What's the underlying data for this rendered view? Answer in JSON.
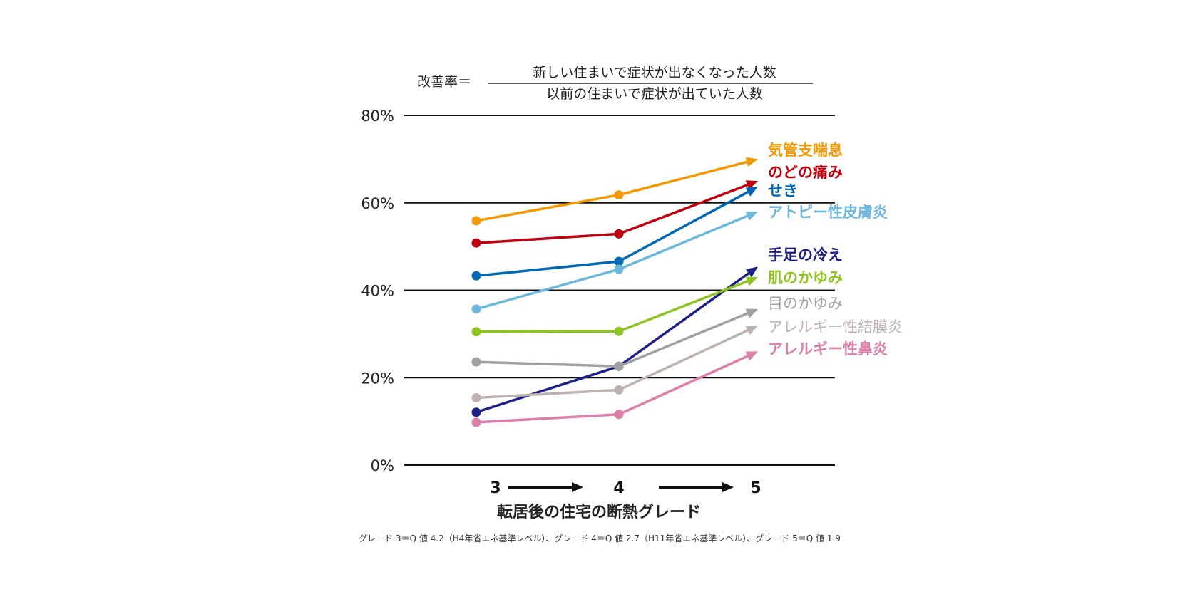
{
  "formula": {
    "lhs": "改善率＝",
    "numerator": "新しい住まいで症状が出なくなった人数",
    "denominator": "以前の住まいで症状が出ていた人数"
  },
  "footnote": "グレード 3＝Q 値 4.2（H4年省エネ基準レベル）、グレード 4＝Q 値 2.7（H11年省エネ基準レベル）、グレード 5＝Q 値 1.9",
  "chart_data": {
    "type": "line",
    "title": "",
    "xlabel": "転居後の住宅の断熱グレード",
    "ylabel": "",
    "categories": [
      "3",
      "4",
      "5"
    ],
    "x_arrows": true,
    "ylim": [
      0,
      80
    ],
    "yticks": [
      0,
      20,
      40,
      60,
      80
    ],
    "ytick_labels": [
      "0%",
      "20%",
      "40%",
      "60%",
      "80%"
    ],
    "grid": "horizontal",
    "legend": "inline labels at right end of lines",
    "series": [
      {
        "name": "気管支喘息",
        "color": "#f39800",
        "values": [
          55.9,
          61.8,
          70.0
        ]
      },
      {
        "name": "のどの痛み",
        "color": "#c1000f",
        "values": [
          50.8,
          52.9,
          65.0
        ]
      },
      {
        "name": "せき",
        "color": "#0068b7",
        "values": [
          43.3,
          46.6,
          63.7
        ]
      },
      {
        "name": "アトピー性皮膚炎",
        "color": "#6db6dc",
        "values": [
          35.7,
          44.8,
          58.0
        ]
      },
      {
        "name": "手足の冷え",
        "color": "#1d2088",
        "values": [
          12.1,
          22.6,
          45.4
        ]
      },
      {
        "name": "肌のかゆみ",
        "color": "#8fc31f",
        "values": [
          30.5,
          30.6,
          43.0
        ]
      },
      {
        "name": "目のかゆみ",
        "color": "#9fa0a0",
        "values": [
          23.6,
          22.6,
          35.7
        ]
      },
      {
        "name": "アレルギー性結膜炎",
        "color": "#bcb3ae",
        "values": [
          15.4,
          17.2,
          31.9
        ]
      },
      {
        "name": "アレルギー性鼻炎",
        "color": "#dc7fa9",
        "values": [
          9.8,
          11.6,
          26.0
        ]
      }
    ]
  }
}
